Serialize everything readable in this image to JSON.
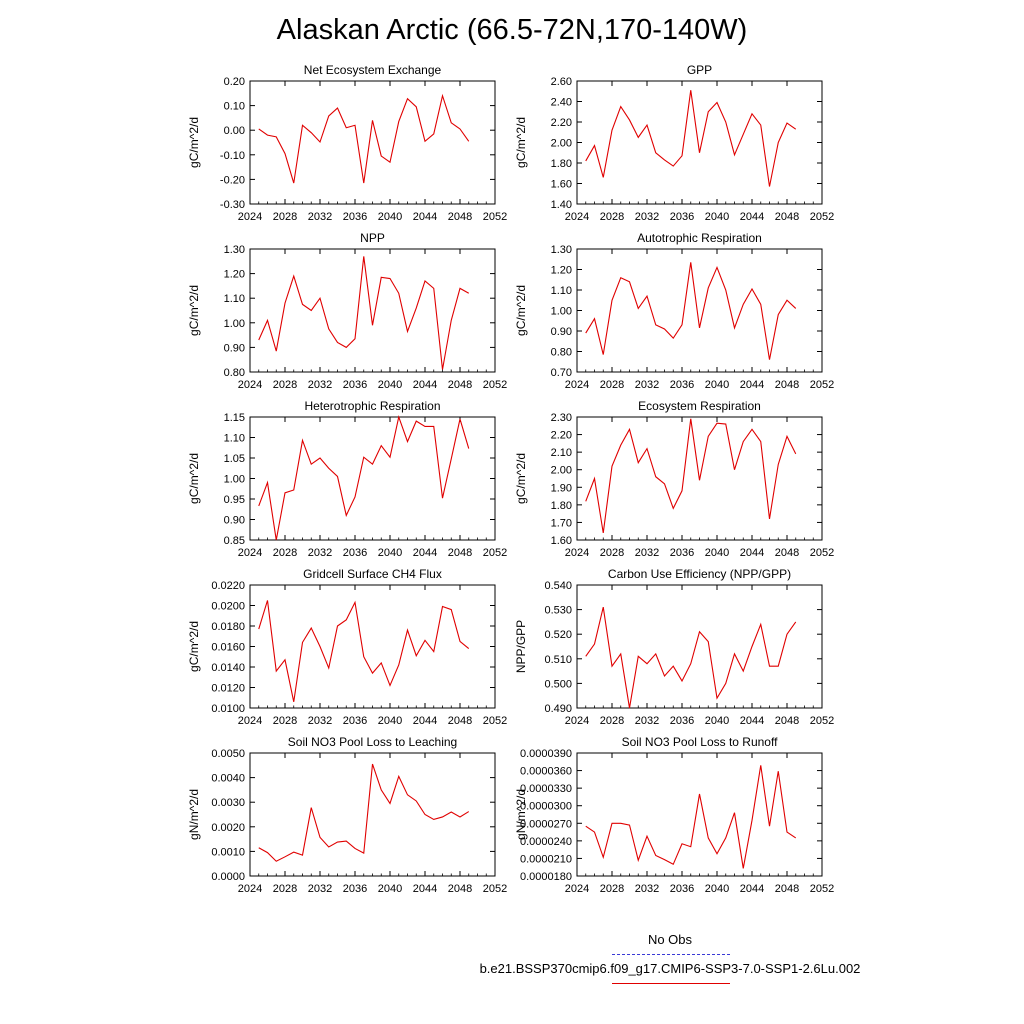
{
  "page": {
    "title": "Alaskan Arctic (66.5-72N,170-140W)"
  },
  "legend": {
    "obs_label": "No Obs",
    "obs_color": "#3a3ad6",
    "case_label": "b.e21.BSSP370cmip6.f09_g17.CMIP6-SSP3-7.0-SSP1-2.6Lu.002",
    "case_color": "#e00000"
  },
  "chart_data": [
    {
      "type": "line",
      "title": "Net Ecosystem Exchange",
      "ylabel": "gC/m^2/d",
      "xlim": [
        2024,
        2052
      ],
      "xticks": [
        "2024",
        "2028",
        "2032",
        "2036",
        "2040",
        "2044",
        "2048",
        "2052"
      ],
      "ylim": [
        -0.3,
        0.2
      ],
      "yticks": [
        "-0.30",
        "-0.20",
        "-0.10",
        "0.00",
        "0.10",
        "0.20"
      ],
      "x": [
        2025,
        2026,
        2027,
        2028,
        2029,
        2030,
        2031,
        2032,
        2033,
        2034,
        2035,
        2036,
        2037,
        2038,
        2039,
        2040,
        2041,
        2042,
        2043,
        2044,
        2045,
        2046,
        2047,
        2048,
        2049
      ],
      "series": [
        {
          "color": "#e00000",
          "values": [
            0.005,
            -0.02,
            -0.027,
            -0.095,
            -0.215,
            0.02,
            -0.01,
            -0.048,
            0.058,
            0.09,
            0.01,
            0.02,
            -0.215,
            0.04,
            -0.105,
            -0.13,
            0.035,
            0.128,
            0.095,
            -0.045,
            -0.015,
            0.14,
            0.03,
            0.005,
            -0.045
          ]
        }
      ]
    },
    {
      "type": "line",
      "title": "GPP",
      "ylabel": "gC/m^2/d",
      "xlim": [
        2024,
        2052
      ],
      "xticks": [
        "2024",
        "2028",
        "2032",
        "2036",
        "2040",
        "2044",
        "2048",
        "2052"
      ],
      "ylim": [
        1.4,
        2.6
      ],
      "yticks": [
        "1.40",
        "1.60",
        "1.80",
        "2.00",
        "2.20",
        "2.40",
        "2.60"
      ],
      "x": [
        2025,
        2026,
        2027,
        2028,
        2029,
        2030,
        2031,
        2032,
        2033,
        2034,
        2035,
        2036,
        2037,
        2038,
        2039,
        2040,
        2041,
        2042,
        2043,
        2044,
        2045,
        2046,
        2047,
        2048,
        2049
      ],
      "series": [
        {
          "color": "#e00000",
          "values": [
            1.82,
            1.97,
            1.66,
            2.12,
            2.35,
            2.22,
            2.05,
            2.17,
            1.9,
            1.83,
            1.77,
            1.87,
            2.51,
            1.9,
            2.3,
            2.39,
            2.2,
            1.88,
            2.08,
            2.28,
            2.17,
            1.57,
            2.0,
            2.19,
            2.13
          ]
        }
      ]
    },
    {
      "type": "line",
      "title": "NPP",
      "ylabel": "gC/m^2/d",
      "xlim": [
        2024,
        2052
      ],
      "xticks": [
        "2024",
        "2028",
        "2032",
        "2036",
        "2040",
        "2044",
        "2048",
        "2052"
      ],
      "ylim": [
        0.8,
        1.3
      ],
      "yticks": [
        "0.80",
        "0.90",
        "1.00",
        "1.10",
        "1.20",
        "1.30"
      ],
      "x": [
        2025,
        2026,
        2027,
        2028,
        2029,
        2030,
        2031,
        2032,
        2033,
        2034,
        2035,
        2036,
        2037,
        2038,
        2039,
        2040,
        2041,
        2042,
        2043,
        2044,
        2045,
        2046,
        2047,
        2048,
        2049
      ],
      "series": [
        {
          "color": "#e00000",
          "values": [
            0.93,
            1.01,
            0.885,
            1.08,
            1.19,
            1.075,
            1.05,
            1.1,
            0.975,
            0.92,
            0.9,
            0.935,
            1.27,
            0.99,
            1.185,
            1.18,
            1.12,
            0.965,
            1.06,
            1.17,
            1.14,
            0.81,
            1.01,
            1.14,
            1.12
          ]
        }
      ]
    },
    {
      "type": "line",
      "title": "Autotrophic Respiration",
      "ylabel": "gC/m^2/d",
      "xlim": [
        2024,
        2052
      ],
      "xticks": [
        "2024",
        "2028",
        "2032",
        "2036",
        "2040",
        "2044",
        "2048",
        "2052"
      ],
      "ylim": [
        0.7,
        1.3
      ],
      "yticks": [
        "0.70",
        "0.80",
        "0.90",
        "1.00",
        "1.10",
        "1.20",
        "1.30"
      ],
      "x": [
        2025,
        2026,
        2027,
        2028,
        2029,
        2030,
        2031,
        2032,
        2033,
        2034,
        2035,
        2036,
        2037,
        2038,
        2039,
        2040,
        2041,
        2042,
        2043,
        2044,
        2045,
        2046,
        2047,
        2048,
        2049
      ],
      "series": [
        {
          "color": "#e00000",
          "values": [
            0.89,
            0.96,
            0.785,
            1.05,
            1.16,
            1.14,
            1.01,
            1.07,
            0.93,
            0.91,
            0.865,
            0.93,
            1.235,
            0.915,
            1.11,
            1.21,
            1.1,
            0.915,
            1.03,
            1.105,
            1.03,
            0.76,
            0.98,
            1.05,
            1.01
          ]
        }
      ]
    },
    {
      "type": "line",
      "title": "Heterotrophic Respiration",
      "ylabel": "gC/m^2/d",
      "xlim": [
        2024,
        2052
      ],
      "xticks": [
        "2024",
        "2028",
        "2032",
        "2036",
        "2040",
        "2044",
        "2048",
        "2052"
      ],
      "ylim": [
        0.85,
        1.15
      ],
      "yticks": [
        "0.85",
        "0.90",
        "0.95",
        "1.00",
        "1.05",
        "1.10",
        "1.15"
      ],
      "x": [
        2025,
        2026,
        2027,
        2028,
        2029,
        2030,
        2031,
        2032,
        2033,
        2034,
        2035,
        2036,
        2037,
        2038,
        2039,
        2040,
        2041,
        2042,
        2043,
        2044,
        2045,
        2046,
        2047,
        2048,
        2049
      ],
      "series": [
        {
          "color": "#e00000",
          "values": [
            0.933,
            0.99,
            0.85,
            0.965,
            0.972,
            1.093,
            1.035,
            1.05,
            1.025,
            1.005,
            0.91,
            0.955,
            1.052,
            1.035,
            1.08,
            1.052,
            1.15,
            1.09,
            1.14,
            1.127,
            1.127,
            0.952,
            1.048,
            1.145,
            1.073
          ]
        }
      ]
    },
    {
      "type": "line",
      "title": "Ecosystem Respiration",
      "ylabel": "gC/m^2/d",
      "xlim": [
        2024,
        2052
      ],
      "xticks": [
        "2024",
        "2028",
        "2032",
        "2036",
        "2040",
        "2044",
        "2048",
        "2052"
      ],
      "ylim": [
        1.6,
        2.3
      ],
      "yticks": [
        "1.60",
        "1.70",
        "1.80",
        "1.90",
        "2.00",
        "2.10",
        "2.20",
        "2.30"
      ],
      "x": [
        2025,
        2026,
        2027,
        2028,
        2029,
        2030,
        2031,
        2032,
        2033,
        2034,
        2035,
        2036,
        2037,
        2038,
        2039,
        2040,
        2041,
        2042,
        2043,
        2044,
        2045,
        2046,
        2047,
        2048,
        2049
      ],
      "series": [
        {
          "color": "#e00000",
          "values": [
            1.82,
            1.95,
            1.64,
            2.02,
            2.14,
            2.23,
            2.04,
            2.12,
            1.96,
            1.92,
            1.78,
            1.88,
            2.29,
            1.94,
            2.19,
            2.265,
            2.26,
            2.0,
            2.16,
            2.23,
            2.16,
            1.72,
            2.03,
            2.19,
            2.09
          ]
        }
      ]
    },
    {
      "type": "line",
      "title": "Gridcell Surface CH4 Flux",
      "ylabel": "gC/m^2/d",
      "xlim": [
        2024,
        2052
      ],
      "xticks": [
        "2024",
        "2028",
        "2032",
        "2036",
        "2040",
        "2044",
        "2048",
        "2052"
      ],
      "ylim": [
        0.01,
        0.022
      ],
      "yticks": [
        "0.0100",
        "0.0120",
        "0.0140",
        "0.0160",
        "0.0180",
        "0.0200",
        "0.0220"
      ],
      "x": [
        2025,
        2026,
        2027,
        2028,
        2029,
        2030,
        2031,
        2032,
        2033,
        2034,
        2035,
        2036,
        2037,
        2038,
        2039,
        2040,
        2041,
        2042,
        2043,
        2044,
        2045,
        2046,
        2047,
        2048,
        2049
      ],
      "series": [
        {
          "color": "#e00000",
          "values": [
            0.0177,
            0.0205,
            0.0136,
            0.0147,
            0.0106,
            0.0164,
            0.0178,
            0.016,
            0.0139,
            0.018,
            0.0186,
            0.0203,
            0.015,
            0.0134,
            0.0144,
            0.0122,
            0.0142,
            0.0176,
            0.0151,
            0.0166,
            0.0155,
            0.0199,
            0.0196,
            0.0165,
            0.0158
          ]
        }
      ]
    },
    {
      "type": "line",
      "title": "Carbon Use Efficiency (NPP/GPP)",
      "ylabel": "NPP/GPP",
      "xlim": [
        2024,
        2052
      ],
      "xticks": [
        "2024",
        "2028",
        "2032",
        "2036",
        "2040",
        "2044",
        "2048",
        "2052"
      ],
      "ylim": [
        0.49,
        0.54
      ],
      "yticks": [
        "0.490",
        "0.500",
        "0.510",
        "0.520",
        "0.530",
        "0.540"
      ],
      "x": [
        2025,
        2026,
        2027,
        2028,
        2029,
        2030,
        2031,
        2032,
        2033,
        2034,
        2035,
        2036,
        2037,
        2038,
        2039,
        2040,
        2041,
        2042,
        2043,
        2044,
        2045,
        2046,
        2047,
        2048,
        2049
      ],
      "series": [
        {
          "color": "#e00000",
          "values": [
            0.511,
            0.516,
            0.531,
            0.507,
            0.512,
            0.49,
            0.511,
            0.508,
            0.512,
            0.503,
            0.507,
            0.501,
            0.508,
            0.521,
            0.517,
            0.494,
            0.5,
            0.512,
            0.505,
            0.515,
            0.524,
            0.507,
            0.507,
            0.52,
            0.525
          ]
        }
      ]
    },
    {
      "type": "line",
      "title": "Soil NO3 Pool Loss to Leaching",
      "ylabel": "gN/m^2/d",
      "xlim": [
        2024,
        2052
      ],
      "xticks": [
        "2024",
        "2028",
        "2032",
        "2036",
        "2040",
        "2044",
        "2048",
        "2052"
      ],
      "ylim": [
        0.0,
        0.005
      ],
      "yticks": [
        "0.0000",
        "0.0010",
        "0.0020",
        "0.0030",
        "0.0040",
        "0.0050"
      ],
      "x": [
        2025,
        2026,
        2027,
        2028,
        2029,
        2030,
        2031,
        2032,
        2033,
        2034,
        2035,
        2036,
        2037,
        2038,
        2039,
        2040,
        2041,
        2042,
        2043,
        2044,
        2045,
        2046,
        2047,
        2048,
        2049
      ],
      "series": [
        {
          "color": "#e00000",
          "values": [
            0.00115,
            0.00095,
            0.0006,
            0.00078,
            0.00097,
            0.00085,
            0.00278,
            0.00157,
            0.00118,
            0.00138,
            0.00142,
            0.00112,
            0.00093,
            0.00455,
            0.0035,
            0.00295,
            0.00405,
            0.0033,
            0.00305,
            0.0025,
            0.0023,
            0.0024,
            0.0026,
            0.0024,
            0.00262
          ]
        }
      ]
    },
    {
      "type": "line",
      "title": "Soil NO3 Pool Loss to Runoff",
      "ylabel": "gN/m^2/d",
      "xlim": [
        2024,
        2052
      ],
      "xticks": [
        "2024",
        "2028",
        "2032",
        "2036",
        "2040",
        "2044",
        "2048",
        "2052"
      ],
      "ylim": [
        1.8e-05,
        3.9e-05
      ],
      "yticks": [
        "0.0000180",
        "0.0000210",
        "0.0000240",
        "0.0000270",
        "0.0000300",
        "0.0000330",
        "0.0000360",
        "0.0000390"
      ],
      "x": [
        2025,
        2026,
        2027,
        2028,
        2029,
        2030,
        2031,
        2032,
        2033,
        2034,
        2035,
        2036,
        2037,
        2038,
        2039,
        2040,
        2041,
        2042,
        2043,
        2044,
        2045,
        2046,
        2047,
        2048,
        2049
      ],
      "series": [
        {
          "color": "#e00000",
          "values": [
            2.65e-05,
            2.55e-05,
            2.12e-05,
            2.7e-05,
            2.7e-05,
            2.67e-05,
            2.07e-05,
            2.48e-05,
            2.15e-05,
            2.08e-05,
            2e-05,
            2.35e-05,
            2.3e-05,
            3.2e-05,
            2.45e-05,
            2.18e-05,
            2.45e-05,
            2.88e-05,
            1.93e-05,
            2.75e-05,
            3.69e-05,
            2.65e-05,
            3.59e-05,
            2.55e-05,
            2.45e-05
          ]
        }
      ]
    }
  ]
}
